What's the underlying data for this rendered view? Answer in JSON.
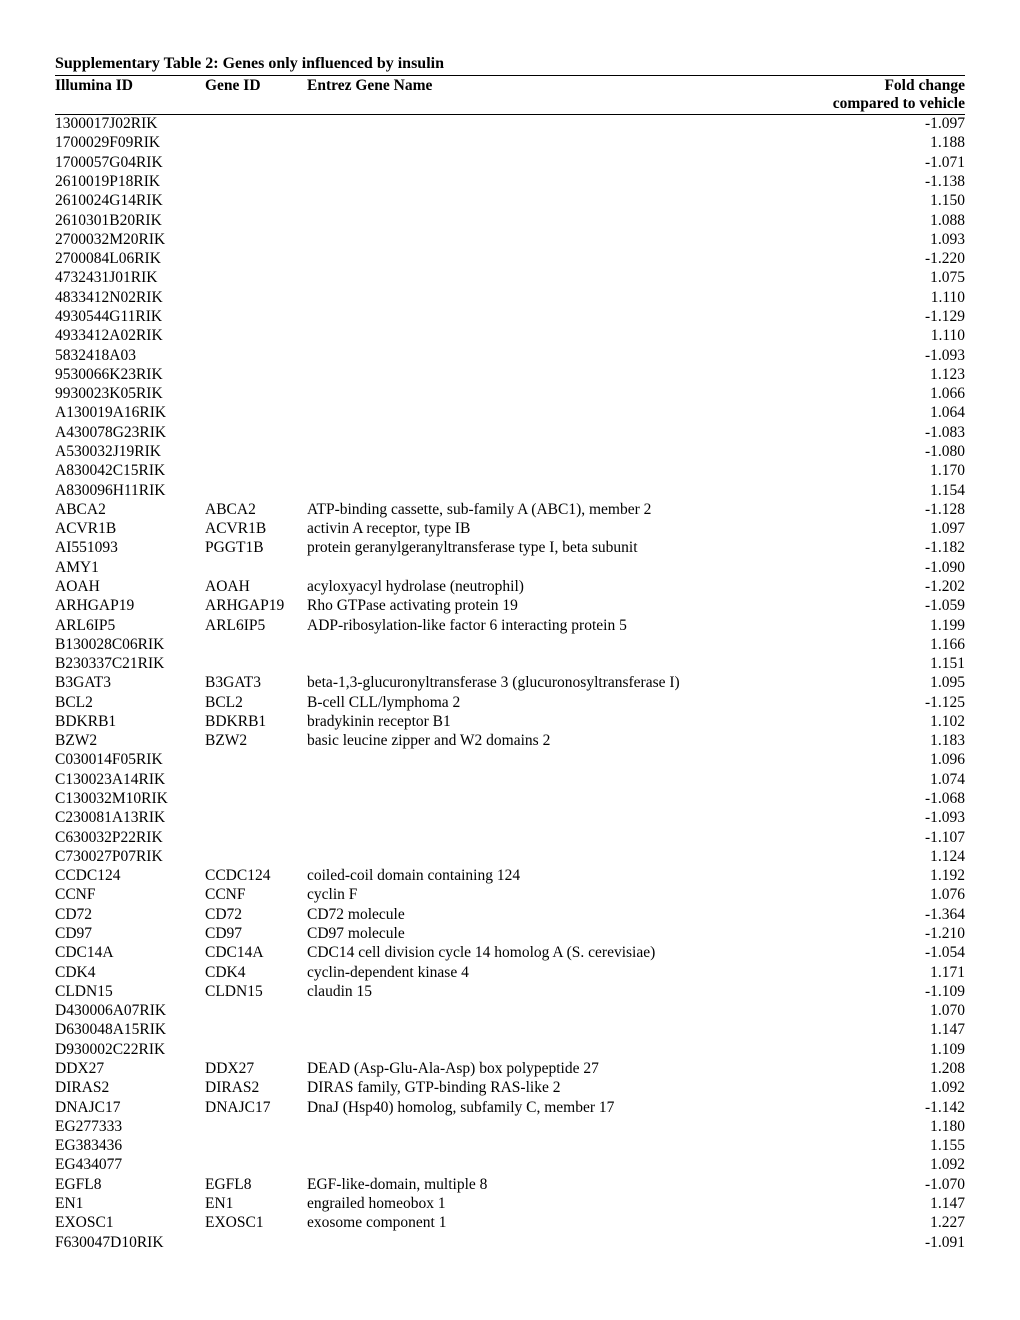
{
  "title": "Supplementary Table 2: Genes only influenced by insulin",
  "columns": {
    "c1": "Illumina ID",
    "c2": "Gene ID",
    "c3": "Entrez Gene Name",
    "c4_line1": "Fold change",
    "c4_line2": "compared to vehicle"
  },
  "rows": [
    {
      "illumina": "1300017J02RIK",
      "gene": "",
      "name": "",
      "fold": "-1.097"
    },
    {
      "illumina": "1700029F09RIK",
      "gene": "",
      "name": "",
      "fold": "1.188"
    },
    {
      "illumina": "1700057G04RIK",
      "gene": "",
      "name": "",
      "fold": "-1.071"
    },
    {
      "illumina": "2610019P18RIK",
      "gene": "",
      "name": "",
      "fold": "-1.138"
    },
    {
      "illumina": "2610024G14RIK",
      "gene": "",
      "name": "",
      "fold": "1.150"
    },
    {
      "illumina": "2610301B20RIK",
      "gene": "",
      "name": "",
      "fold": "1.088"
    },
    {
      "illumina": "2700032M20RIK",
      "gene": "",
      "name": "",
      "fold": "1.093"
    },
    {
      "illumina": "2700084L06RIK",
      "gene": "",
      "name": "",
      "fold": "-1.220"
    },
    {
      "illumina": "4732431J01RIK",
      "gene": "",
      "name": "",
      "fold": "1.075"
    },
    {
      "illumina": "4833412N02RIK",
      "gene": "",
      "name": "",
      "fold": "1.110"
    },
    {
      "illumina": "4930544G11RIK",
      "gene": "",
      "name": "",
      "fold": "-1.129"
    },
    {
      "illumina": "4933412A02RIK",
      "gene": "",
      "name": "",
      "fold": "1.110"
    },
    {
      "illumina": "5832418A03",
      "gene": "",
      "name": "",
      "fold": "-1.093"
    },
    {
      "illumina": "9530066K23RIK",
      "gene": "",
      "name": "",
      "fold": "1.123"
    },
    {
      "illumina": "9930023K05RIK",
      "gene": "",
      "name": "",
      "fold": "1.066"
    },
    {
      "illumina": "A130019A16RIK",
      "gene": "",
      "name": "",
      "fold": "1.064"
    },
    {
      "illumina": "A430078G23RIK",
      "gene": "",
      "name": "",
      "fold": "-1.083"
    },
    {
      "illumina": "A530032J19RIK",
      "gene": "",
      "name": "",
      "fold": "-1.080"
    },
    {
      "illumina": "A830042C15RIK",
      "gene": "",
      "name": "",
      "fold": "1.170"
    },
    {
      "illumina": "A830096H11RIK",
      "gene": "",
      "name": "",
      "fold": "1.154"
    },
    {
      "illumina": "ABCA2",
      "gene": "ABCA2",
      "name": "ATP-binding cassette, sub-family A (ABC1), member 2",
      "fold": "-1.128"
    },
    {
      "illumina": "ACVR1B",
      "gene": "ACVR1B",
      "name": "activin A receptor, type IB",
      "fold": "1.097"
    },
    {
      "illumina": "AI551093",
      "gene": "PGGT1B",
      "name": "protein geranylgeranyltransferase type I, beta subunit",
      "fold": "-1.182"
    },
    {
      "illumina": "AMY1",
      "gene": "",
      "name": "",
      "fold": "-1.090"
    },
    {
      "illumina": "AOAH",
      "gene": "AOAH",
      "name": "acyloxyacyl hydrolase (neutrophil)",
      "fold": "-1.202"
    },
    {
      "illumina": "ARHGAP19",
      "gene": "ARHGAP19",
      "name": "Rho GTPase activating protein 19",
      "fold": "-1.059"
    },
    {
      "illumina": "ARL6IP5",
      "gene": "ARL6IP5",
      "name": "ADP-ribosylation-like factor 6 interacting protein 5",
      "fold": "1.199"
    },
    {
      "illumina": "B130028C06RIK",
      "gene": "",
      "name": "",
      "fold": "1.166"
    },
    {
      "illumina": "B230337C21RIK",
      "gene": "",
      "name": "",
      "fold": "1.151"
    },
    {
      "illumina": "B3GAT3",
      "gene": "B3GAT3",
      "name": "beta-1,3-glucuronyltransferase 3 (glucuronosyltransferase I)",
      "fold": "1.095"
    },
    {
      "illumina": "BCL2",
      "gene": "BCL2",
      "name": "B-cell CLL/lymphoma 2",
      "fold": "-1.125"
    },
    {
      "illumina": "BDKRB1",
      "gene": "BDKRB1",
      "name": "bradykinin receptor B1",
      "fold": "1.102"
    },
    {
      "illumina": "BZW2",
      "gene": "BZW2",
      "name": "basic leucine zipper and W2 domains 2",
      "fold": "1.183"
    },
    {
      "illumina": "C030014F05RIK",
      "gene": "",
      "name": "",
      "fold": "1.096"
    },
    {
      "illumina": "C130023A14RIK",
      "gene": "",
      "name": "",
      "fold": "1.074"
    },
    {
      "illumina": "C130032M10RIK",
      "gene": "",
      "name": "",
      "fold": "-1.068"
    },
    {
      "illumina": "C230081A13RIK",
      "gene": "",
      "name": "",
      "fold": "-1.093"
    },
    {
      "illumina": "C630032P22RIK",
      "gene": "",
      "name": "",
      "fold": "-1.107"
    },
    {
      "illumina": "C730027P07RIK",
      "gene": "",
      "name": "",
      "fold": "1.124"
    },
    {
      "illumina": "CCDC124",
      "gene": "CCDC124",
      "name": "coiled-coil domain containing 124",
      "fold": "1.192"
    },
    {
      "illumina": "CCNF",
      "gene": "CCNF",
      "name": "cyclin F",
      "fold": "1.076"
    },
    {
      "illumina": "CD72",
      "gene": "CD72",
      "name": "CD72 molecule",
      "fold": "-1.364"
    },
    {
      "illumina": "CD97",
      "gene": "CD97",
      "name": "CD97 molecule",
      "fold": "-1.210"
    },
    {
      "illumina": "CDC14A",
      "gene": "CDC14A",
      "name": "CDC14 cell division cycle 14 homolog A (S. cerevisiae)",
      "fold": "-1.054"
    },
    {
      "illumina": "CDK4",
      "gene": "CDK4",
      "name": "cyclin-dependent kinase 4",
      "fold": "1.171"
    },
    {
      "illumina": "CLDN15",
      "gene": "CLDN15",
      "name": "claudin 15",
      "fold": "-1.109"
    },
    {
      "illumina": "D430006A07RIK",
      "gene": "",
      "name": "",
      "fold": "1.070"
    },
    {
      "illumina": "D630048A15RIK",
      "gene": "",
      "name": "",
      "fold": "1.147"
    },
    {
      "illumina": "D930002C22RIK",
      "gene": "",
      "name": "",
      "fold": "1.109"
    },
    {
      "illumina": "DDX27",
      "gene": "DDX27",
      "name": "DEAD (Asp-Glu-Ala-Asp) box polypeptide 27",
      "fold": "1.208"
    },
    {
      "illumina": "DIRAS2",
      "gene": "DIRAS2",
      "name": "DIRAS family, GTP-binding RAS-like 2",
      "fold": "1.092"
    },
    {
      "illumina": "DNAJC17",
      "gene": "DNAJC17",
      "name": "DnaJ (Hsp40) homolog, subfamily C, member 17",
      "fold": "-1.142"
    },
    {
      "illumina": "EG277333",
      "gene": "",
      "name": "",
      "fold": "1.180"
    },
    {
      "illumina": "EG383436",
      "gene": "",
      "name": "",
      "fold": "1.155"
    },
    {
      "illumina": "EG434077",
      "gene": "",
      "name": "",
      "fold": "1.092"
    },
    {
      "illumina": "EGFL8",
      "gene": "EGFL8",
      "name": "EGF-like-domain, multiple 8",
      "fold": "-1.070"
    },
    {
      "illumina": "EN1",
      "gene": "EN1",
      "name": "engrailed homeobox 1",
      "fold": "1.147"
    },
    {
      "illumina": "EXOSC1",
      "gene": "EXOSC1",
      "name": "exosome component 1",
      "fold": "1.227"
    },
    {
      "illumina": "F630047D10RIK",
      "gene": "",
      "name": "",
      "fold": "-1.091"
    }
  ]
}
